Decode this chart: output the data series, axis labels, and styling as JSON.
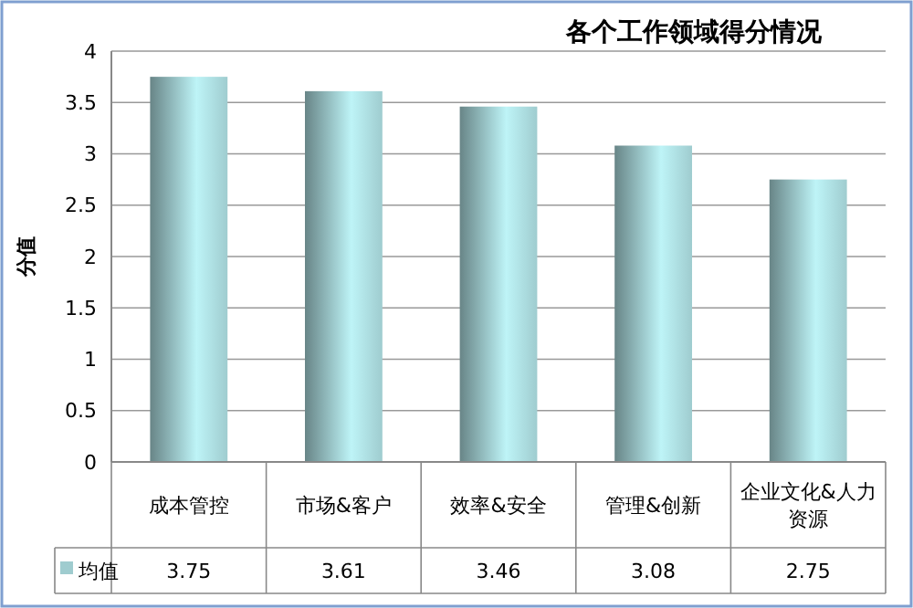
{
  "chart_data": {
    "type": "bar",
    "title": "各个工作领域得分情况",
    "ylabel": "分值",
    "categories": [
      "成本管控",
      "市场&客户",
      "效率&安全",
      "管理&创新",
      "企业文化&人力资源"
    ],
    "series": [
      {
        "name": "均值",
        "color": "#9fcccf",
        "values": [
          3.75,
          3.61,
          3.46,
          3.08,
          2.75
        ]
      }
    ],
    "ylim": [
      0,
      4
    ],
    "yticks": [
      0,
      0.5,
      1,
      1.5,
      2,
      2.5,
      3,
      3.5,
      4
    ],
    "grid": "y",
    "data_labels": true,
    "legend": "bottom left"
  }
}
